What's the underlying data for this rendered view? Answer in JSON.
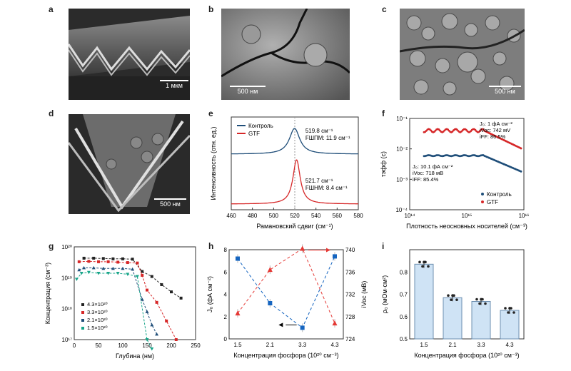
{
  "panels": {
    "a": {
      "letter": "a",
      "scale": "1 мкм"
    },
    "b": {
      "letter": "b",
      "scale": "500 нм"
    },
    "c": {
      "letter": "c",
      "scale": "500 нм"
    },
    "d": {
      "letter": "d",
      "scale": "500 нм"
    },
    "e": {
      "letter": "e"
    },
    "f": {
      "letter": "f"
    },
    "g": {
      "letter": "g"
    },
    "h": {
      "letter": "h"
    },
    "i": {
      "letter": "i"
    }
  },
  "chart_data": [
    {
      "id": "e",
      "type": "line",
      "xlabel": "Рамановский сдвиг (см⁻¹)",
      "ylabel": "Интенсивность (отн. ед.)",
      "xlim": [
        460,
        580
      ],
      "xticks": [
        "460",
        "480",
        "500",
        "520",
        "540",
        "560",
        "580"
      ],
      "series": [
        {
          "name": "Контроль",
          "color": "#1f4e79",
          "peak": 519.8,
          "fwhm": 11.9,
          "ann1": "519.8 см⁻¹",
          "ann2": "FШПМ: 11.9 см⁻¹"
        },
        {
          "name": "GTF",
          "color": "#d62728",
          "peak": 521.7,
          "fwhm": 8.4,
          "ann1": "521.7 см⁻¹",
          "ann2": "FШНМ: 8.4 см⁻¹"
        }
      ]
    },
    {
      "id": "f",
      "type": "scatter",
      "xlabel": "Плотность неосновных носителей (см⁻³)",
      "ylabel": "τэфф (с)",
      "xscale": "log",
      "yscale": "log",
      "xticks": [
        "10¹⁴",
        "10¹⁵",
        "10¹⁶"
      ],
      "yticks": [
        "10⁻¹",
        "10⁻²",
        "10⁻³",
        "10⁻⁴"
      ],
      "series": [
        {
          "name": "Контроль",
          "color": "#1f4e79",
          "level": 0.006,
          "ann": [
            "J₀: 10.1 фА см⁻²",
            "iVoc: 718 мВ",
            "iFF: 85.4%"
          ]
        },
        {
          "name": "GTF",
          "color": "#d62728",
          "level": 0.04,
          "ann": [
            "J₀: 1 фА см⁻²",
            "iVoc: 742 мV",
            "iFF: 86.5%"
          ]
        }
      ]
    },
    {
      "id": "g",
      "type": "scatter",
      "xlabel": "Глубина (нм)",
      "ylabel": "Концентрация (см⁻³)",
      "xlim": [
        0,
        250
      ],
      "yscale": "log",
      "ylim_exp": [
        17,
        20
      ],
      "xticks": [
        "0",
        "50",
        "100",
        "150",
        "200",
        "250"
      ],
      "yticks": [
        "10²⁰",
        "10¹⁹",
        "10¹⁸",
        "10¹⁷"
      ],
      "series": [
        {
          "name": "4.3×10²⁰",
          "color": "#222222",
          "marker": "square",
          "x": [
            20,
            40,
            60,
            80,
            100,
            120,
            140,
            160,
            180,
            200,
            220
          ],
          "y": [
            4.3e+19,
            4.3e+19,
            4.2e+19,
            4.1e+19,
            4.1e+19,
            4e+19,
            1.6e+19,
            1.1e+19,
            6e+18,
            3.5e+18,
            2.2e+18
          ]
        },
        {
          "name": "3.3×10²⁰",
          "color": "#d62728",
          "marker": "square",
          "x": [
            10,
            30,
            50,
            70,
            90,
            110,
            130,
            140,
            150,
            170,
            190,
            210
          ],
          "y": [
            3.3e+19,
            3.4e+19,
            3.3e+19,
            3.3e+19,
            3.2e+19,
            3.1e+19,
            3e+19,
            1.2e+19,
            4e+18,
            1.6e+18,
            4e+17,
            1e+17
          ]
        },
        {
          "name": "2.1×10²⁰",
          "color": "#1f4e79",
          "marker": "triangle",
          "x": [
            10,
            20,
            40,
            60,
            80,
            100,
            120,
            140,
            150,
            160,
            170
          ],
          "y": [
            1.8e+19,
            2.1e+19,
            2.1e+19,
            2e+19,
            2e+19,
            2e+19,
            1.9e+19,
            2e+18,
            8e+17,
            3e+17,
            1.5e+17
          ]
        },
        {
          "name": "1.5×10²⁰",
          "color": "#17a589",
          "marker": "triangle-down",
          "x": [
            5,
            15,
            30,
            50,
            70,
            90,
            110,
            130,
            150,
            160
          ],
          "y": [
            9e+18,
            1.4e+19,
            1.5e+19,
            1.4e+19,
            1.4e+19,
            1.4e+19,
            1.3e+19,
            1.1e+19,
            1e+17,
            5e+16
          ]
        }
      ]
    },
    {
      "id": "h",
      "type": "line",
      "xlabel": "Концентрация фосфора (10²⁰ см⁻³)",
      "ylabel": "J₀ (фА см⁻²)",
      "ylabel2": "iVoc (мВ)",
      "categories": [
        "1.5",
        "2.1",
        "3.3",
        "4.3"
      ],
      "ylim": [
        0,
        8
      ],
      "ylim2": [
        724,
        740
      ],
      "yticks": [
        "0",
        "2",
        "4",
        "6",
        "8"
      ],
      "yticks2": [
        "724",
        "728",
        "732",
        "736",
        "740"
      ],
      "series": [
        {
          "name": "J₀",
          "color": "#1565c0",
          "values": [
            7.2,
            3.2,
            1.0,
            7.4
          ]
        },
        {
          "name": "iVoc",
          "color": "#e53935",
          "values": [
            728.6,
            736.4,
            740.2,
            726.8
          ],
          "axis": "right"
        }
      ]
    },
    {
      "id": "i",
      "type": "bar",
      "xlabel": "Концентрация фосфора (10²⁰ см⁻³)",
      "ylabel": "ρ₀ (мОм·см²)",
      "categories": [
        "1.5",
        "2.1",
        "3.3",
        "4.3"
      ],
      "values": [
        0.835,
        0.685,
        0.668,
        0.628
      ],
      "ylim": [
        0.5,
        0.9
      ],
      "yticks": [
        "0.5",
        "0.6",
        "0.7",
        "0.8"
      ]
    }
  ]
}
